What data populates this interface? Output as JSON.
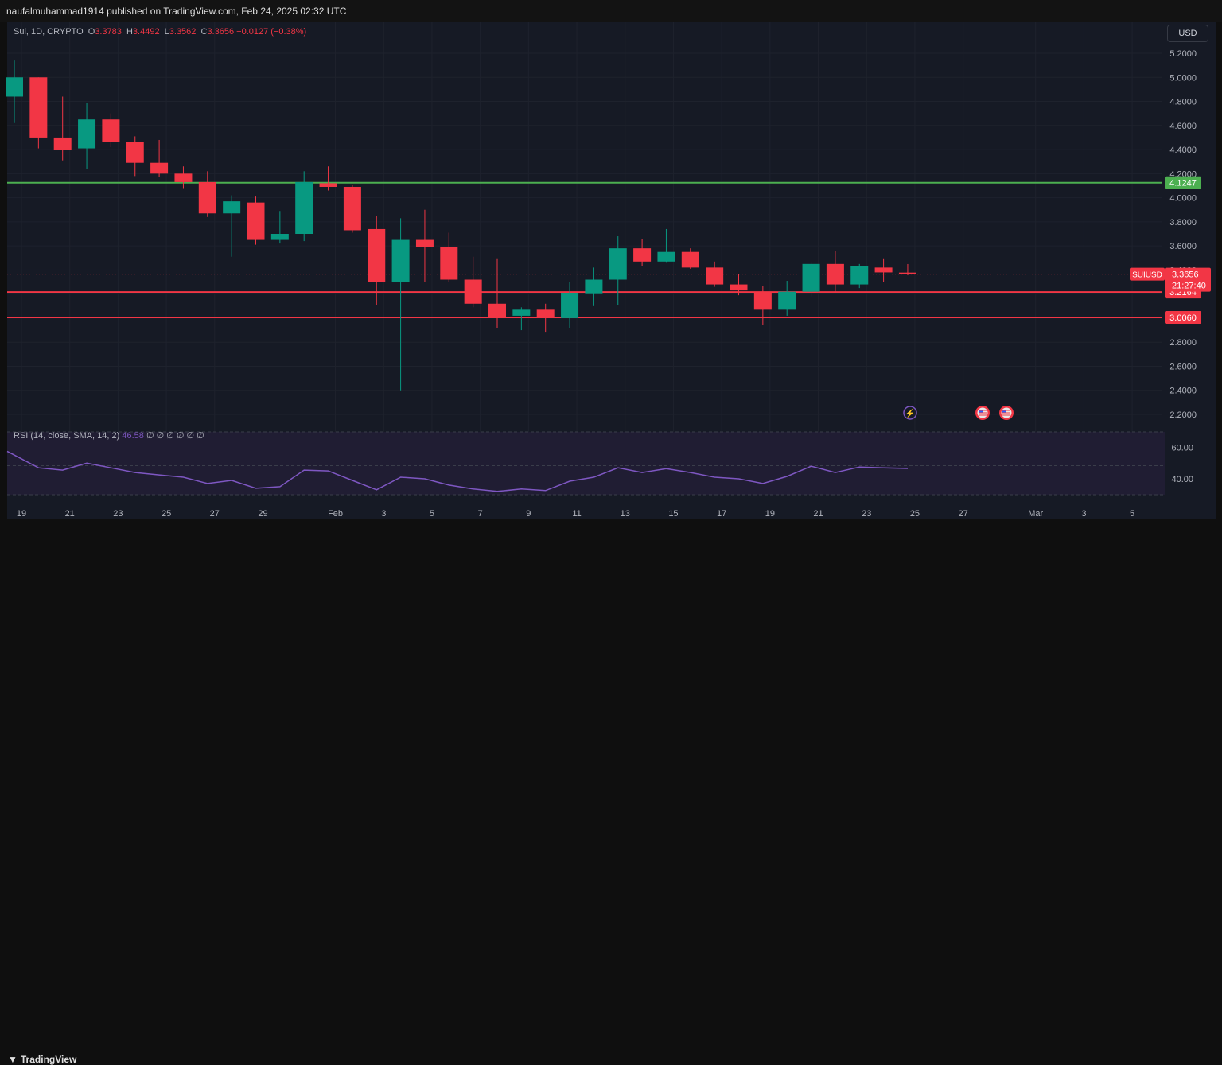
{
  "header": {
    "published": "naufalmuhammad1914 published on TradingView.com, Feb 24, 2025 02:32 UTC"
  },
  "legend": {
    "symbol": "Sui, 1D, CRYPTO",
    "open_label": "O",
    "open": "3.3783",
    "high_label": "H",
    "high": "3.4492",
    "low_label": "L",
    "low": "3.3562",
    "close_label": "C",
    "close": "3.3656",
    "change": "−0.0127 (−0.38%)"
  },
  "currency": "USD",
  "price_tag": {
    "symbol": "SUIUSD",
    "price": "3.3656",
    "countdown": "21:27:40"
  },
  "levels": [
    {
      "label": "4.1247",
      "value": 4.1247,
      "color": "#4caf50"
    },
    {
      "label": "3.2164",
      "value": 3.2164,
      "color": "#f23645"
    },
    {
      "label": "3.0060",
      "value": 3.006,
      "color": "#f23645"
    }
  ],
  "rsi_legend": {
    "label": "RSI (14, close, SMA, 14, 2)",
    "value": "46.58",
    "extras": "∅ ∅ ∅ ∅ ∅ ∅"
  },
  "footer": {
    "brand": "TradingView"
  },
  "colors": {
    "up": "#089981",
    "down": "#f23645",
    "rsi": "#7e57c2",
    "background": "#161a25"
  },
  "chart_data": [
    {
      "type": "candlestick",
      "title": "Sui, 1D, CRYPTO",
      "y_axis_ticks": [
        "5.2000",
        "5.0000",
        "4.8000",
        "4.6000",
        "4.4000",
        "4.2000",
        "4.0000",
        "3.8000",
        "3.6000",
        "3.4000",
        "3.2000",
        "3.0000",
        "2.8000",
        "2.6000",
        "2.4000",
        "2.2000"
      ],
      "x_axis_ticks": [
        "19",
        "21",
        "23",
        "25",
        "27",
        "29",
        "Feb",
        "3",
        "5",
        "7",
        "9",
        "11",
        "13",
        "15",
        "17",
        "19",
        "21",
        "23",
        "25",
        "27",
        "Mar",
        "3",
        "5"
      ],
      "ylim": [
        2.1,
        5.3
      ],
      "candles": [
        {
          "date": "Jan 19",
          "o": 4.84,
          "h": 5.14,
          "l": 4.62,
          "c": 5.0
        },
        {
          "date": "Jan 20",
          "o": 5.0,
          "h": 5.0,
          "l": 4.41,
          "c": 4.5
        },
        {
          "date": "Jan 21",
          "o": 4.5,
          "h": 4.84,
          "l": 4.31,
          "c": 4.4
        },
        {
          "date": "Jan 22",
          "o": 4.41,
          "h": 4.79,
          "l": 4.24,
          "c": 4.65
        },
        {
          "date": "Jan 23",
          "o": 4.65,
          "h": 4.7,
          "l": 4.42,
          "c": 4.46
        },
        {
          "date": "Jan 24",
          "o": 4.46,
          "h": 4.51,
          "l": 4.18,
          "c": 4.29
        },
        {
          "date": "Jan 25",
          "o": 4.29,
          "h": 4.48,
          "l": 4.17,
          "c": 4.2
        },
        {
          "date": "Jan 26",
          "o": 4.2,
          "h": 4.26,
          "l": 4.08,
          "c": 4.13
        },
        {
          "date": "Jan 27",
          "o": 4.13,
          "h": 4.22,
          "l": 3.84,
          "c": 3.87
        },
        {
          "date": "Jan 28",
          "o": 3.87,
          "h": 4.02,
          "l": 3.51,
          "c": 3.97
        },
        {
          "date": "Jan 29",
          "o": 3.96,
          "h": 4.01,
          "l": 3.61,
          "c": 3.65
        },
        {
          "date": "Jan 30",
          "o": 3.65,
          "h": 3.89,
          "l": 3.62,
          "c": 3.7
        },
        {
          "date": "Jan 31",
          "o": 3.7,
          "h": 4.22,
          "l": 3.64,
          "c": 4.13
        },
        {
          "date": "Feb 1",
          "o": 4.12,
          "h": 4.26,
          "l": 4.06,
          "c": 4.09
        },
        {
          "date": "Feb 2",
          "o": 4.09,
          "h": 4.11,
          "l": 3.71,
          "c": 3.73
        },
        {
          "date": "Feb 3",
          "o": 3.74,
          "h": 3.85,
          "l": 3.11,
          "c": 3.3
        },
        {
          "date": "Feb 4",
          "o": 3.3,
          "h": 3.83,
          "l": 2.4,
          "c": 3.65
        },
        {
          "date": "Feb 5",
          "o": 3.65,
          "h": 3.9,
          "l": 3.3,
          "c": 3.59
        },
        {
          "date": "Feb 6",
          "o": 3.59,
          "h": 3.71,
          "l": 3.3,
          "c": 3.32
        },
        {
          "date": "Feb 7",
          "o": 3.32,
          "h": 3.51,
          "l": 3.09,
          "c": 3.12
        },
        {
          "date": "Feb 8",
          "o": 3.12,
          "h": 3.49,
          "l": 2.92,
          "c": 3.0
        },
        {
          "date": "Feb 9",
          "o": 3.02,
          "h": 3.09,
          "l": 2.9,
          "c": 3.07
        },
        {
          "date": "Feb 10",
          "o": 3.07,
          "h": 3.12,
          "l": 2.88,
          "c": 3.01
        },
        {
          "date": "Feb 11",
          "o": 3.0,
          "h": 3.3,
          "l": 2.92,
          "c": 3.21
        },
        {
          "date": "Feb 12",
          "o": 3.2,
          "h": 3.42,
          "l": 3.1,
          "c": 3.32
        },
        {
          "date": "Feb 13",
          "o": 3.32,
          "h": 3.68,
          "l": 3.11,
          "c": 3.58
        },
        {
          "date": "Feb 14",
          "o": 3.58,
          "h": 3.66,
          "l": 3.43,
          "c": 3.47
        },
        {
          "date": "Feb 15",
          "o": 3.47,
          "h": 3.74,
          "l": 3.46,
          "c": 3.55
        },
        {
          "date": "Feb 16",
          "o": 3.55,
          "h": 3.58,
          "l": 3.41,
          "c": 3.42
        },
        {
          "date": "Feb 17",
          "o": 3.42,
          "h": 3.47,
          "l": 3.26,
          "c": 3.28
        },
        {
          "date": "Feb 18",
          "o": 3.28,
          "h": 3.37,
          "l": 3.19,
          "c": 3.23
        },
        {
          "date": "Feb 19",
          "o": 3.22,
          "h": 3.27,
          "l": 2.94,
          "c": 3.07
        },
        {
          "date": "Feb 20",
          "o": 3.07,
          "h": 3.31,
          "l": 3.02,
          "c": 3.22
        },
        {
          "date": "Feb 21",
          "o": 3.22,
          "h": 3.46,
          "l": 3.18,
          "c": 3.45
        },
        {
          "date": "Feb 22",
          "o": 3.45,
          "h": 3.56,
          "l": 3.22,
          "c": 3.28
        },
        {
          "date": "Feb 23",
          "o": 3.28,
          "h": 3.45,
          "l": 3.25,
          "c": 3.43
        },
        {
          "date": "Feb 24",
          "o": 3.42,
          "h": 3.49,
          "l": 3.3,
          "c": 3.38
        },
        {
          "date": "Feb 25",
          "o": 3.3783,
          "h": 3.4492,
          "l": 3.3562,
          "c": 3.3656
        }
      ]
    },
    {
      "type": "line",
      "title": "RSI (14, close, SMA, 14, 2)",
      "y_axis_ticks": [
        "60.00",
        "40.00"
      ],
      "ylim": [
        30,
        70
      ],
      "series": [
        {
          "values": [
            57.5,
            47.0,
            45.5,
            50.0,
            47.0,
            44.0,
            42.5,
            41.0,
            37.0,
            39.0,
            34.0,
            35.0,
            45.5,
            45.0,
            39.0,
            33.0,
            41.0,
            40.0,
            36.0,
            33.5,
            32.0,
            33.5,
            32.5,
            38.5,
            41.0,
            47.0,
            44.0,
            46.5,
            44.0,
            41.0,
            40.0,
            37.0,
            41.5,
            48.0,
            44.0,
            47.5,
            47.0,
            46.58
          ]
        }
      ]
    }
  ]
}
